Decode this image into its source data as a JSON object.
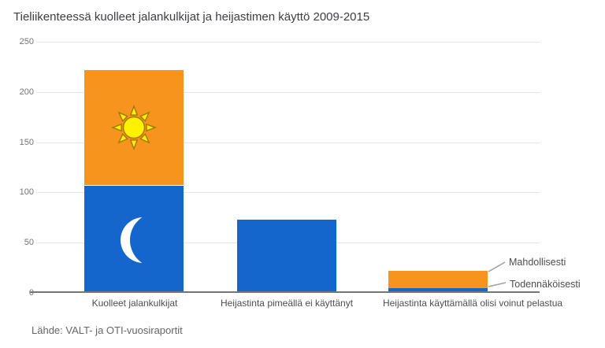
{
  "source": "Lähde: VALT- ja OTI-vuosiraportit",
  "colors": {
    "bar_blue": "#1266CC",
    "bar_orange": "#F7941E",
    "sun_fill": "#FFF200",
    "sun_stroke": "#A67C00",
    "moon_fill": "#FFFFFF",
    "gridline": "#E6E6E6",
    "axis_line": "#757575",
    "title_text": "#3C4043",
    "label_text": "#4D4D4D",
    "tick_text": "#757575",
    "annotation_line": "#9E9E9E",
    "source_text": "#666666"
  },
  "chart_data": {
    "type": "bar",
    "stacked": true,
    "title": "Tieliikenteessä kuolleet jalankulkijat ja heijastimen käyttö 2009-2015",
    "categories": [
      "Kuolleet jalankulkijat",
      "Heijastinta pimeällä ei käyttänyt",
      "Heijastinta käyttämällä olisi voinut pelastua"
    ],
    "series": [
      {
        "name": "blue-segment",
        "color": "#1266CC",
        "values": [
          107,
          73,
          5
        ]
      },
      {
        "name": "orange-segment",
        "color": "#F7941E",
        "values": [
          115,
          0,
          17
        ]
      }
    ],
    "xlabel": "",
    "ylabel": "",
    "ylim": [
      0,
      250
    ],
    "yticks": [
      0,
      50,
      100,
      150,
      200,
      250
    ],
    "grid": true,
    "legend": "none",
    "annotations": [
      {
        "label": "Mahdollisesti",
        "bar": 3,
        "segment": "orange-segment"
      },
      {
        "label": "Todennäköisesti",
        "bar": 3,
        "segment": "blue-segment"
      }
    ],
    "icons": [
      {
        "name": "sun-icon",
        "bar": 1,
        "segment": "orange-segment"
      },
      {
        "name": "moon-icon",
        "bar": 1,
        "segment": "blue-segment"
      }
    ]
  }
}
